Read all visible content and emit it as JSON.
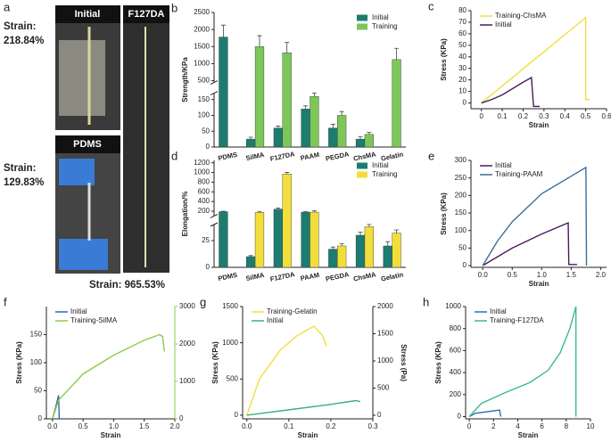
{
  "panel_a": {
    "label": "a",
    "tag_top_left": "Initial",
    "tag_top_right": "F127DA",
    "tag_bottom_left": "PDMS",
    "strain_1_title": "Strain:",
    "strain_1_value": "218.84%",
    "strain_2_title": "Strain:",
    "strain_2_value": "129.83%",
    "strain_3": "Strain: 965.53%"
  },
  "chart_data": [
    {
      "type": "bar",
      "label": "b",
      "ylabel": "Strength/KPa",
      "legend": "upper right",
      "categories": [
        "PDMS",
        "SilMA",
        "F127DA",
        "PAAM",
        "PEGDA",
        "ChsMA",
        "Gelatin"
      ],
      "ysegments": [
        {
          "ylim": [
            0,
            170
          ],
          "yticks": [
            0,
            50,
            100,
            150
          ]
        },
        {
          "ylim": [
            450,
            2500
          ],
          "yticks": [
            500,
            1000,
            1500,
            2000,
            2500
          ]
        }
      ],
      "series": [
        {
          "name": "Initial",
          "color": "#1c7c70",
          "values": [
            1780,
            25,
            60,
            120,
            60,
            25,
            null
          ],
          "errors": [
            350,
            6,
            6,
            10,
            12,
            8,
            null
          ]
        },
        {
          "name": "Training",
          "color": "#7cc65a",
          "values": [
            null,
            1500,
            1320,
            160,
            100,
            40,
            1120
          ],
          "errors": [
            null,
            320,
            300,
            15,
            12,
            6,
            330
          ]
        }
      ]
    },
    {
      "type": "line",
      "label": "c",
      "xlabel": "Strain",
      "ylabel": "Stress (KPa)",
      "legend": "upper left",
      "xlim": [
        -0.05,
        0.6
      ],
      "xticks": [
        0,
        0.1,
        0.2,
        0.3,
        0.4,
        0.5,
        0.6
      ],
      "ylim": [
        -5,
        80
      ],
      "yticks": [
        0,
        10,
        20,
        30,
        40,
        50,
        60,
        70,
        80
      ],
      "series": [
        {
          "name": "Training-ChsMA",
          "color": "#f2de3a",
          "x": [
            0,
            0.5,
            0.5,
            0.52
          ],
          "values": [
            0,
            74,
            3,
            3
          ]
        },
        {
          "name": "Initial",
          "color": "#4b1a5c",
          "x": [
            0,
            0.05,
            0.1,
            0.2,
            0.24,
            0.25,
            0.28
          ],
          "values": [
            0,
            3,
            7,
            18,
            22,
            -3,
            -3
          ]
        }
      ]
    },
    {
      "type": "bar",
      "label": "d",
      "ylabel": "Elongation/%",
      "legend": "upper right",
      "categories": [
        "PDMS",
        "SilMA",
        "F127DA",
        "PAAM",
        "PEGDA",
        "ChsMA",
        "Gelatin"
      ],
      "ysegments": [
        {
          "ylim": [
            0,
            40
          ],
          "yticks": [
            0,
            25
          ]
        },
        {
          "ylim": [
            100,
            1250
          ],
          "yticks": [
            200,
            400,
            600,
            800,
            1000,
            1200
          ]
        }
      ],
      "series": [
        {
          "name": "Initial",
          "color": "#1c7c70",
          "values": [
            190,
            10,
            240,
            180,
            17,
            30,
            20
          ],
          "errors": [
            10,
            1,
            25,
            15,
            2,
            3,
            4
          ]
        },
        {
          "name": "Training",
          "color": "#f2de3a",
          "values": [
            null,
            175,
            970,
            180,
            20,
            38,
            32
          ],
          "errors": [
            null,
            20,
            30,
            25,
            2,
            3,
            3
          ]
        }
      ]
    },
    {
      "type": "line",
      "label": "e",
      "xlabel": "Strain",
      "ylabel": "Stress (KPa)",
      "legend": "upper left",
      "xlim": [
        -0.2,
        2.1
      ],
      "xticks": [
        {
          "value": 0,
          "label": "0.0"
        },
        0.5,
        {
          "value": 1,
          "label": "1.0"
        },
        1.5,
        {
          "value": 2,
          "label": "2.0"
        }
      ],
      "ylim": [
        -5,
        300
      ],
      "yticks": [
        0,
        50,
        100,
        150,
        200,
        250,
        300
      ],
      "series": [
        {
          "name": "Initial",
          "color": "#4b1a5c",
          "x": [
            0,
            0.5,
            1,
            1.45,
            1.46,
            1.6
          ],
          "values": [
            0,
            50,
            90,
            122,
            3,
            3
          ]
        },
        {
          "name": "Training-PAAM",
          "color": "#3a6f9a",
          "x": [
            0,
            0.25,
            0.5,
            1,
            1.5,
            1.75,
            1.76
          ],
          "values": [
            0,
            70,
            125,
            205,
            255,
            280,
            0
          ]
        }
      ]
    },
    {
      "type": "line",
      "label": "f",
      "xlabel": "Strain",
      "ylabel": "Stress (KPa)",
      "legend": "upper left",
      "y2_color": "#8dcc4a",
      "xlim": [
        -0.1,
        2
      ],
      "xticks": [
        {
          "value": 0,
          "label": "0.0"
        },
        0.5,
        {
          "value": 1,
          "label": "1.0"
        },
        1.5,
        {
          "value": 2,
          "label": "2.0"
        }
      ],
      "ylim": [
        0,
        200
      ],
      "yticks": [
        0,
        50,
        100,
        150
      ],
      "y2lim": [
        0,
        3000
      ],
      "y2ticks": [
        0,
        1000,
        2000,
        3000
      ],
      "series": [
        {
          "name": "Initial",
          "color": "#2b6cb0",
          "x": [
            0,
            0.05,
            0.1,
            0.11
          ],
          "values": [
            0,
            20,
            42,
            0
          ]
        },
        {
          "name": "Training-SilMA",
          "color": "#8dcc4a",
          "axis": "y2",
          "x": [
            0,
            0.1,
            0.5,
            1,
            1.5,
            1.75,
            1.8,
            1.83
          ],
          "values": [
            0,
            500,
            1200,
            1700,
            2100,
            2250,
            2200,
            1800
          ]
        }
      ]
    },
    {
      "type": "line",
      "label": "g",
      "xlabel": "Strain",
      "ylabel": "Stress (KPa)",
      "y2label": "Stress (Pa)",
      "legend": "upper left",
      "xlim": [
        -0.01,
        0.3
      ],
      "xticks": [
        {
          "value": 0,
          "label": "0.0"
        },
        0.1,
        0.2,
        0.3
      ],
      "ylim": [
        -50,
        1500
      ],
      "yticks": [
        0,
        500,
        1000,
        1500
      ],
      "y2lim": [
        -66,
        2000
      ],
      "y2ticks": [
        0,
        500,
        1000,
        1500,
        2000
      ],
      "series": [
        {
          "name": "Training-Gelatin",
          "color": "#f2de3a",
          "x": [
            0,
            0.03,
            0.08,
            0.12,
            0.16,
            0.18,
            0.19
          ],
          "values": [
            0,
            500,
            900,
            1100,
            1230,
            1100,
            950
          ]
        },
        {
          "name": "Initial",
          "color": "#3cb07a",
          "axis": "y2",
          "x": [
            0,
            0.1,
            0.2,
            0.26,
            0.27
          ],
          "values": [
            0,
            100,
            200,
            270,
            250
          ]
        }
      ]
    },
    {
      "type": "line",
      "label": "h",
      "xlabel": "Strain",
      "ylabel": "Stress (KPa)",
      "legend": "upper left",
      "xlim": [
        -0.3,
        10
      ],
      "xticks": [
        0,
        2,
        4,
        6,
        8,
        10
      ],
      "ylim": [
        -20,
        1000
      ],
      "yticks": [
        0,
        200,
        400,
        600,
        800,
        1000
      ],
      "series": [
        {
          "name": "Initial",
          "color": "#2e6fb0",
          "x": [
            0,
            0.5,
            2.5,
            2.6
          ],
          "values": [
            0,
            30,
            60,
            0
          ]
        },
        {
          "name": "Training-F127DA",
          "color": "#3cb89a",
          "x": [
            0,
            1,
            3,
            5,
            6.5,
            7.5,
            8.3,
            8.8,
            8.8
          ],
          "values": [
            0,
            120,
            220,
            310,
            420,
            580,
            800,
            1000,
            0
          ]
        }
      ]
    }
  ]
}
